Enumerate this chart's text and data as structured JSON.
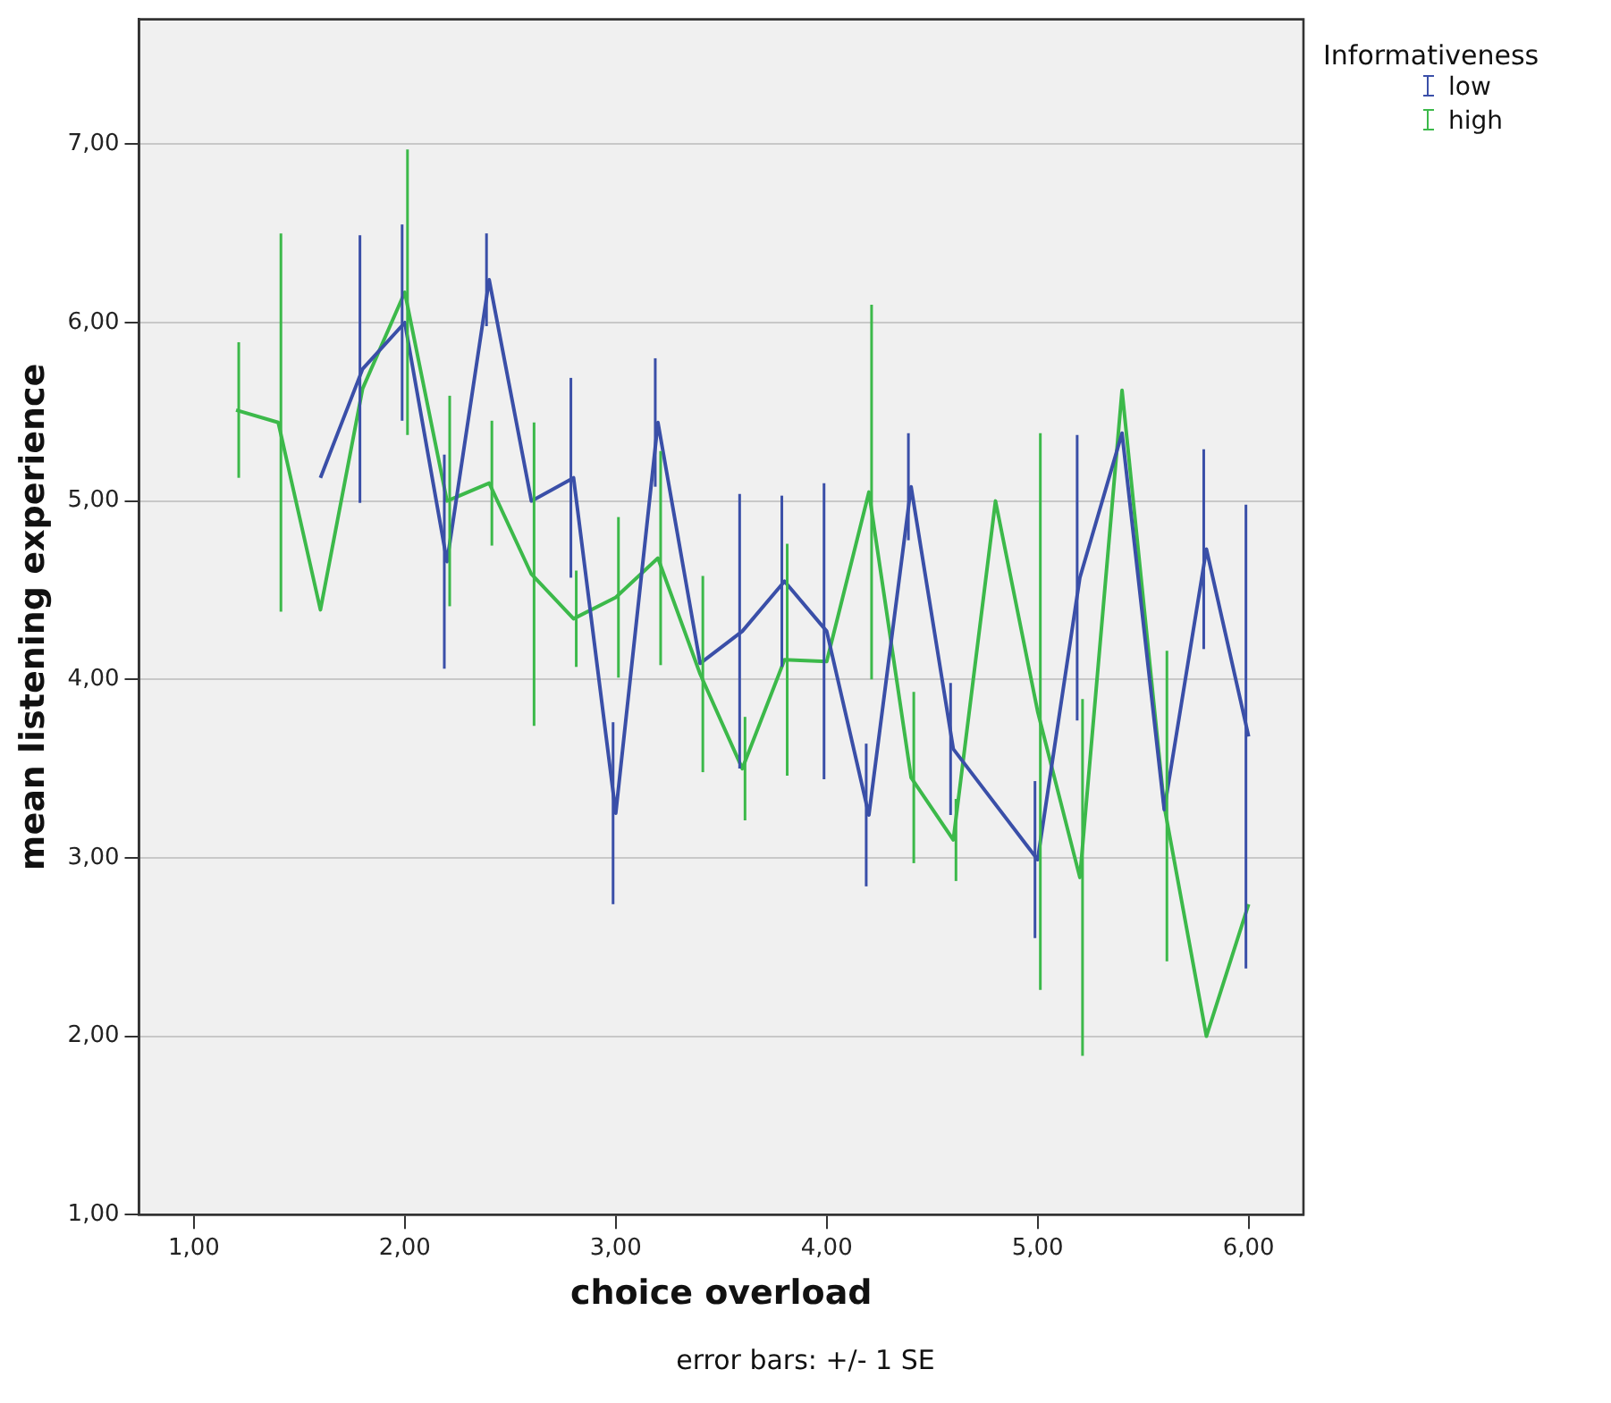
{
  "chart_data": {
    "type": "line",
    "xlabel": "choice overload",
    "ylabel": "mean listening experience",
    "legend_title": "Informativeness",
    "legend": "top right",
    "grid": "y",
    "marker": "none",
    "line_style": "solid",
    "x": [
      1.2,
      1.4,
      1.6,
      1.8,
      2.0,
      2.2,
      2.4,
      2.6,
      2.8,
      3.0,
      3.2,
      3.4,
      3.6,
      3.8,
      4.0,
      4.2,
      4.4,
      4.6,
      4.8,
      5.0,
      5.2,
      5.4,
      5.6,
      5.8,
      6.0
    ],
    "xlim": [
      0.74,
      6.26
    ],
    "xticks": [
      {
        "value": 1,
        "label": "1,00"
      },
      {
        "value": 2,
        "label": "2,00"
      },
      {
        "value": 3,
        "label": "3,00"
      },
      {
        "value": 4,
        "label": "4,00"
      },
      {
        "value": 5,
        "label": "5,00"
      },
      {
        "value": 6,
        "label": "6,00"
      }
    ],
    "ylim": [
      1,
      7.7
    ],
    "yticks": [
      {
        "value": 1,
        "label": "1,00"
      },
      {
        "value": 2,
        "label": "2,00"
      },
      {
        "value": 3,
        "label": "3,00"
      },
      {
        "value": 4,
        "label": "4,00"
      },
      {
        "value": 5,
        "label": "5,00"
      },
      {
        "value": 6,
        "label": "6,00"
      },
      {
        "value": 7,
        "label": "7,00"
      }
    ],
    "series": [
      {
        "name": "low",
        "color": "#3a4fa8",
        "values": [
          null,
          null,
          5.13,
          5.74,
          6.0,
          4.66,
          6.24,
          5.0,
          5.13,
          3.25,
          5.44,
          4.09,
          4.27,
          4.55,
          4.27,
          3.24,
          5.08,
          3.61,
          null,
          2.99,
          4.57,
          5.38,
          3.27,
          4.73,
          3.68
        ],
        "errors": [
          null,
          null,
          null,
          0.75,
          0.55,
          0.6,
          0.26,
          null,
          0.56,
          0.51,
          0.36,
          null,
          0.77,
          0.48,
          0.83,
          0.4,
          0.3,
          0.37,
          null,
          0.44,
          0.8,
          null,
          null,
          0.56,
          1.3
        ]
      },
      {
        "name": "high",
        "color": "#3cb94a",
        "values": [
          5.51,
          5.44,
          4.39,
          5.63,
          6.17,
          5.0,
          5.1,
          4.59,
          4.34,
          4.46,
          4.68,
          4.03,
          3.5,
          4.11,
          4.1,
          5.05,
          3.45,
          3.1,
          5.0,
          3.82,
          2.89,
          5.62,
          3.29,
          2.0,
          2.74
        ],
        "errors": [
          0.38,
          1.06,
          null,
          null,
          0.8,
          0.59,
          0.35,
          0.85,
          0.27,
          0.45,
          0.6,
          0.55,
          0.29,
          0.65,
          null,
          1.05,
          0.48,
          0.23,
          null,
          1.56,
          1.0,
          null,
          0.87,
          null,
          null
        ]
      }
    ],
    "annotations": [
      "error bars: +/- 1 SE"
    ]
  }
}
